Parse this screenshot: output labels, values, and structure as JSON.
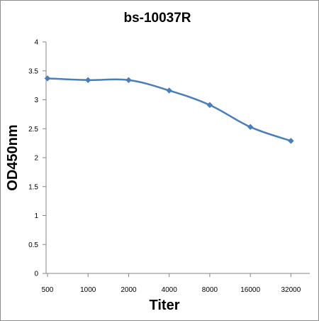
{
  "chart_data": {
    "type": "line",
    "title": "bs-10037R",
    "xlabel": "Titer",
    "ylabel": "OD450nm",
    "categories": [
      "500",
      "1000",
      "2000",
      "4000",
      "8000",
      "16000",
      "32000"
    ],
    "series": [
      {
        "values": [
          3.37,
          3.34,
          3.34,
          3.16,
          2.91,
          2.53,
          2.29
        ]
      }
    ],
    "ylim": [
      0,
      4
    ],
    "yticks": [
      "0",
      "0.5",
      "1",
      "1.5",
      "2",
      "2.5",
      "3",
      "3.5",
      "4"
    ],
    "grid": false,
    "legend": "none",
    "colors": {
      "line": "#4a7ebb",
      "axis": "#868686"
    }
  }
}
